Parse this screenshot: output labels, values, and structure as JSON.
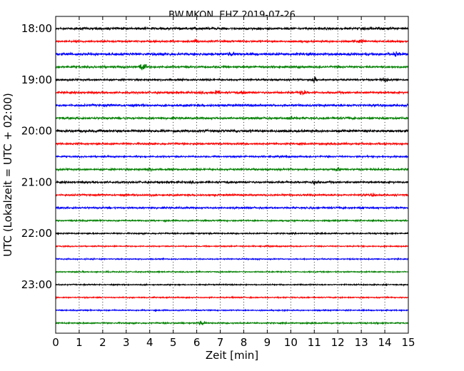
{
  "chart_data": {
    "type": "line",
    "title": "BW.MKON..EHZ 2019-07-26",
    "xlabel": "Zeit  [min]",
    "ylabel": "UTC (Lokalzeit = UTC + 02:00)",
    "xlim": [
      0,
      15
    ],
    "x_ticks": [
      "0",
      "1",
      "2",
      "3",
      "4",
      "5",
      "6",
      "7",
      "8",
      "9",
      "10",
      "11",
      "12",
      "13",
      "14",
      "15"
    ],
    "y_ticks": [
      "18:00",
      "19:00",
      "20:00",
      "21:00",
      "22:00",
      "23:00"
    ],
    "grid": "vertical dotted",
    "trace_colors": [
      "#000000",
      "#ff0000",
      "#0000ff",
      "#008000"
    ],
    "traces": [
      {
        "start": "18:00",
        "amplitude": 1.0,
        "events": []
      },
      {
        "start": "18:15",
        "amplitude": 0.8,
        "events": [
          {
            "x": 6.0,
            "amp": 1.2
          },
          {
            "x": 13.0,
            "amp": 1.0
          }
        ]
      },
      {
        "start": "18:30",
        "amplitude": 1.1,
        "events": [
          {
            "x": 7.5,
            "amp": 1.2
          },
          {
            "x": 14.5,
            "amp": 1.5
          }
        ]
      },
      {
        "start": "18:45",
        "amplitude": 0.9,
        "events": [
          {
            "x": 3.7,
            "amp": 5.0
          }
        ]
      },
      {
        "start": "19:00",
        "amplitude": 0.8,
        "events": [
          {
            "x": 11.0,
            "amp": 2.5
          },
          {
            "x": 14.0,
            "amp": 1.5
          }
        ]
      },
      {
        "start": "19:15",
        "amplitude": 0.9,
        "events": [
          {
            "x": 6.8,
            "amp": 1.5
          },
          {
            "x": 8.0,
            "amp": 1.6
          },
          {
            "x": 10.5,
            "amp": 1.8
          }
        ]
      },
      {
        "start": "19:30",
        "amplitude": 1.0,
        "events": []
      },
      {
        "start": "19:45",
        "amplitude": 0.9,
        "events": [
          {
            "x": 10.0,
            "amp": 1.3
          }
        ]
      },
      {
        "start": "20:00",
        "amplitude": 1.1,
        "events": []
      },
      {
        "start": "20:15",
        "amplitude": 0.8,
        "events": []
      },
      {
        "start": "20:30",
        "amplitude": 0.7,
        "events": []
      },
      {
        "start": "20:45",
        "amplitude": 0.8,
        "events": [
          {
            "x": 4.0,
            "amp": 1.1
          },
          {
            "x": 12.0,
            "amp": 1.2
          }
        ]
      },
      {
        "start": "21:00",
        "amplitude": 0.9,
        "events": [
          {
            "x": 11.0,
            "amp": 1.3
          }
        ]
      },
      {
        "start": "21:15",
        "amplitude": 0.8,
        "events": [
          {
            "x": 13.5,
            "amp": 1.0
          }
        ]
      },
      {
        "start": "21:30",
        "amplitude": 0.8,
        "events": [
          {
            "x": 13.0,
            "amp": 1.0
          }
        ]
      },
      {
        "start": "21:45",
        "amplitude": 0.6,
        "events": []
      },
      {
        "start": "22:00",
        "amplitude": 0.6,
        "events": []
      },
      {
        "start": "22:15",
        "amplitude": 0.5,
        "events": []
      },
      {
        "start": "22:30",
        "amplitude": 0.5,
        "events": []
      },
      {
        "start": "22:45",
        "amplitude": 0.5,
        "events": []
      },
      {
        "start": "23:00",
        "amplitude": 0.5,
        "events": []
      },
      {
        "start": "23:15",
        "amplitude": 0.5,
        "events": []
      },
      {
        "start": "23:30",
        "amplitude": 0.5,
        "events": []
      },
      {
        "start": "23:45",
        "amplitude": 0.6,
        "events": [
          {
            "x": 6.2,
            "amp": 1.6
          }
        ]
      }
    ]
  }
}
